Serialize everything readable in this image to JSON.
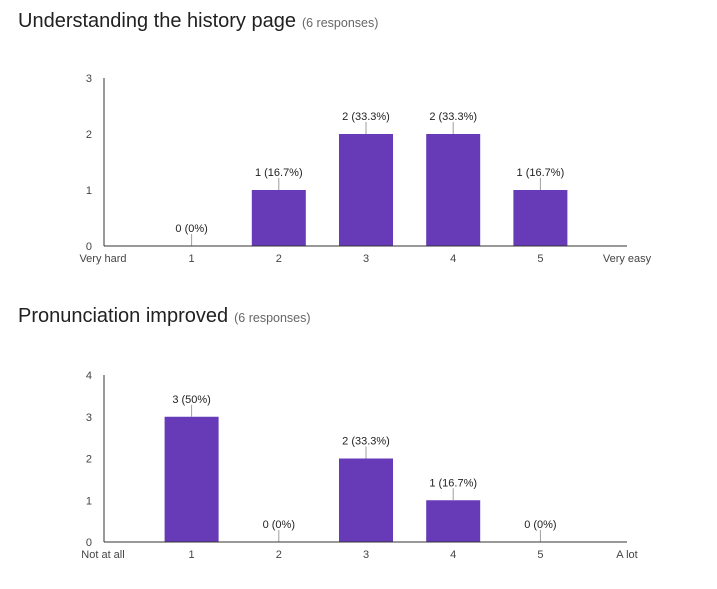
{
  "chart_data": [
    {
      "type": "bar",
      "title": "Understanding the history page",
      "response_count": "(6 responses)",
      "categories": [
        "1",
        "2",
        "3",
        "4",
        "5"
      ],
      "x_start_label": "Very hard",
      "x_end_label": "Very easy",
      "values": [
        0,
        1,
        2,
        2,
        1
      ],
      "data_labels": [
        "0 (0%)",
        "1 (16.7%)",
        "2 (33.3%)",
        "2 (33.3%)",
        "1 (16.7%)"
      ],
      "y_ticks": [
        "0",
        "1",
        "2",
        "3"
      ],
      "ylim": [
        0,
        3
      ],
      "bar_color": "#673ab7",
      "grid": false,
      "legend": "none"
    },
    {
      "type": "bar",
      "title": "Pronunciation improved",
      "response_count": "(6 responses)",
      "categories": [
        "1",
        "2",
        "3",
        "4",
        "5"
      ],
      "x_start_label": "Not at all",
      "x_end_label": "A lot",
      "values": [
        3,
        0,
        2,
        1,
        0
      ],
      "data_labels": [
        "3 (50%)",
        "0 (0%)",
        "2 (33.3%)",
        "1 (16.7%)",
        "0 (0%)"
      ],
      "y_ticks": [
        "0",
        "1",
        "2",
        "3",
        "4"
      ],
      "ylim": [
        0,
        4
      ],
      "bar_color": "#673ab7",
      "grid": false,
      "legend": "none"
    }
  ]
}
